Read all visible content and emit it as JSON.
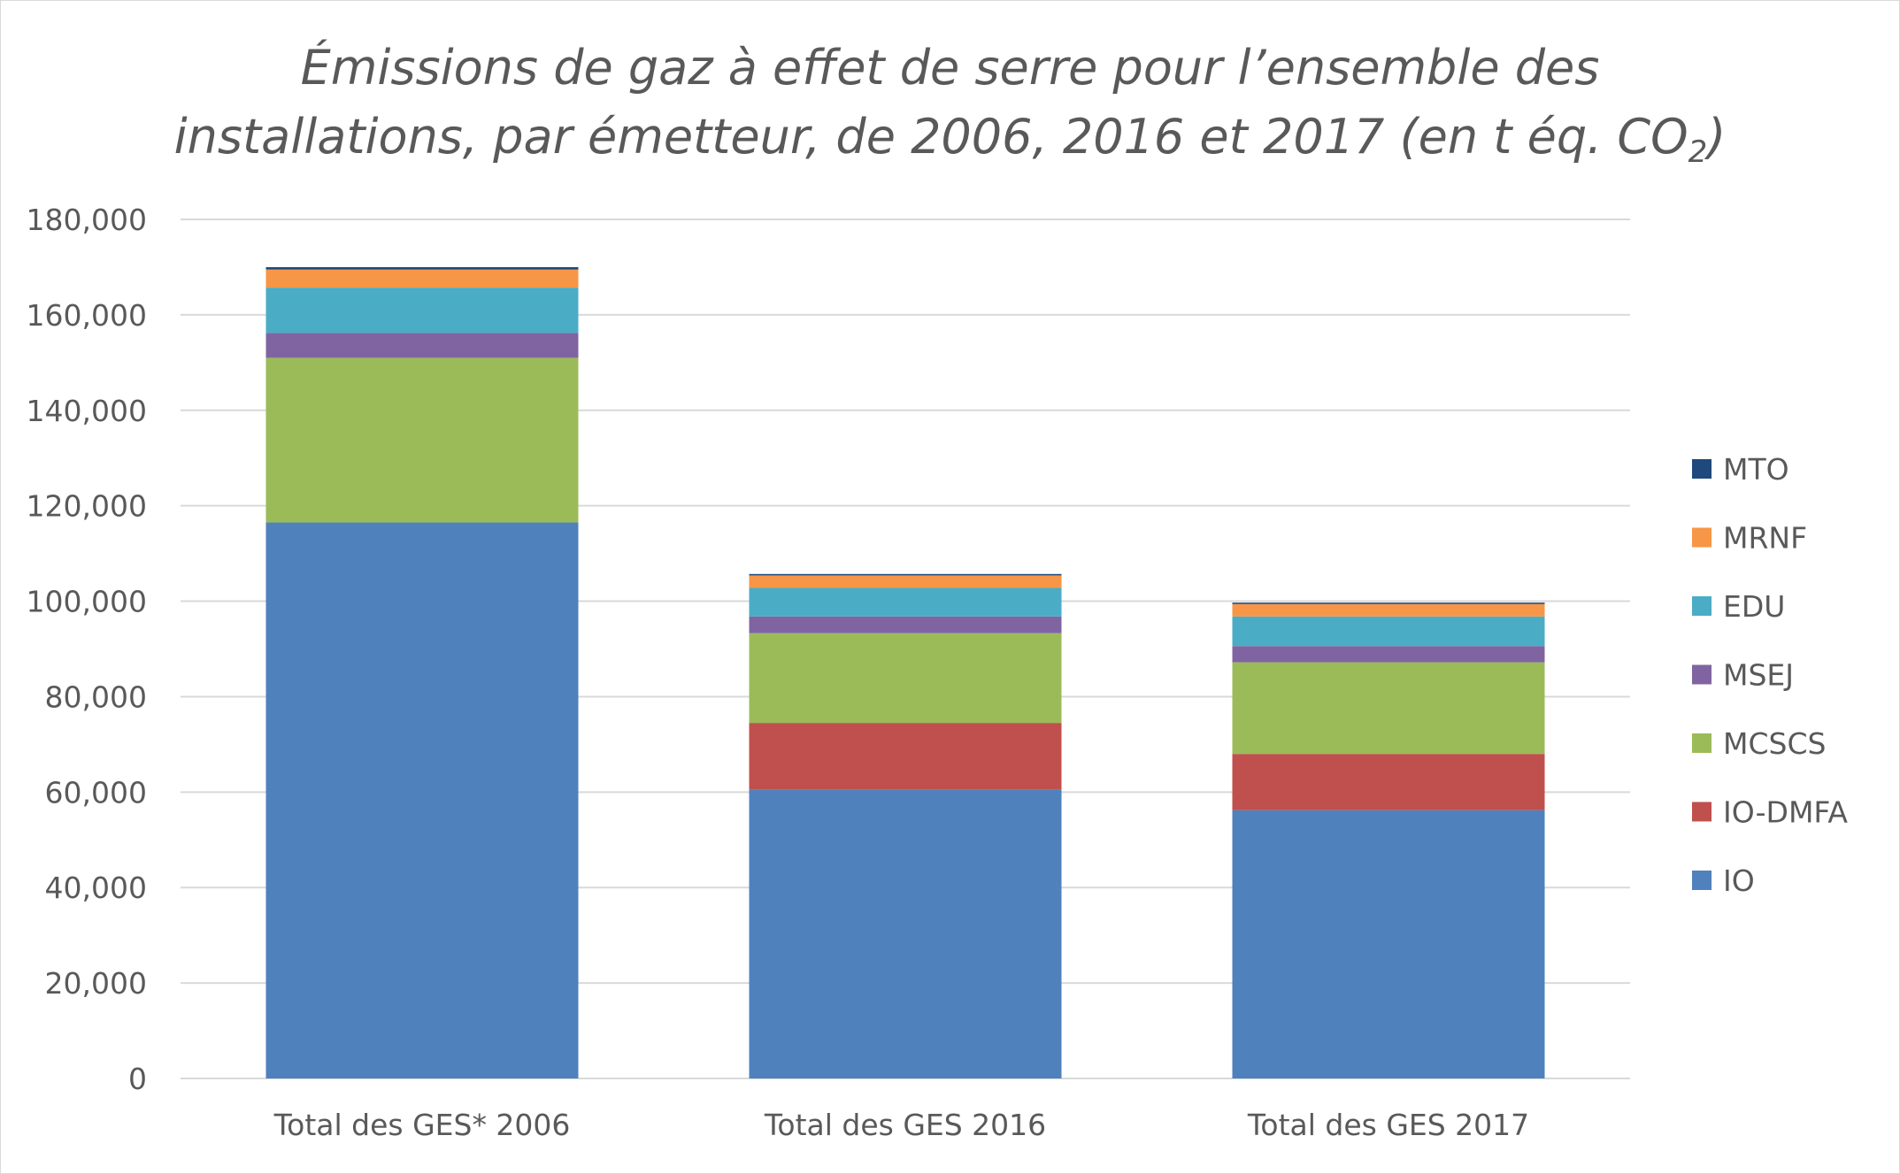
{
  "chart_data": {
    "type": "bar",
    "stacked": true,
    "title_line1": "Émissions de gaz à effet de serre pour l’ensemble des",
    "title_line2": "installations, par émetteur, de 2006, 2016 et 2017 (en t éq. CO",
    "title_sub": "2",
    "title_end": ")",
    "categories": [
      "Total des GES* 2006",
      "Total des GES 2016",
      "Total des GES 2017"
    ],
    "ylim": [
      0,
      180000
    ],
    "yticks": [
      0,
      20000,
      40000,
      60000,
      80000,
      100000,
      120000,
      140000,
      160000,
      180000
    ],
    "ytick_labels": [
      "0",
      "20,000",
      "40,000",
      "60,000",
      "80,000",
      "100,000",
      "120,000",
      "140,000",
      "160,000",
      "180,000"
    ],
    "grid": true,
    "legend_position": "right",
    "series": [
      {
        "name": "IO",
        "color": "#4f81bd",
        "values": [
          116500,
          60500,
          56200
        ]
      },
      {
        "name": "IO-DMFA",
        "color": "#c0504d",
        "values": [
          0,
          14000,
          11800
        ]
      },
      {
        "name": "MCSCS",
        "color": "#9bbb59",
        "values": [
          34500,
          18800,
          19200
        ]
      },
      {
        "name": "MSEJ",
        "color": "#8064a2",
        "values": [
          5200,
          3500,
          3400
        ]
      },
      {
        "name": "EDU",
        "color": "#4bacc6",
        "values": [
          9500,
          6000,
          6200
        ]
      },
      {
        "name": "MRNF",
        "color": "#f79646",
        "values": [
          3800,
          2600,
          2600
        ]
      },
      {
        "name": "MTO",
        "color": "#1f497d",
        "values": [
          500,
          300,
          300
        ]
      }
    ]
  }
}
